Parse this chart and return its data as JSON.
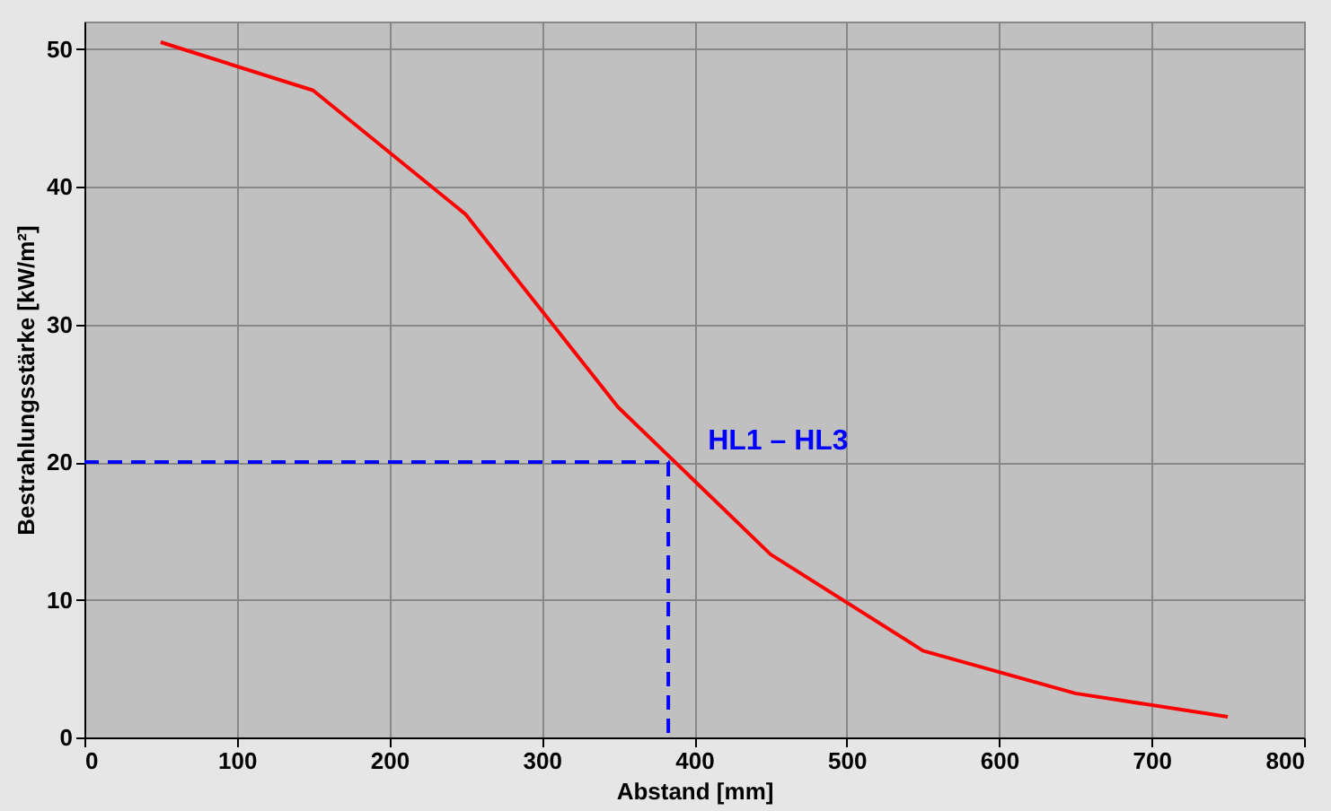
{
  "chart_data": {
    "type": "line",
    "xlabel": "Abstand [mm]",
    "ylabel": "Bestrahlungsstärke [kW/m²]",
    "xlim": [
      0,
      800
    ],
    "xticks": [
      0,
      100,
      200,
      300,
      400,
      500,
      600,
      700,
      800
    ],
    "ylim": [
      0,
      52
    ],
    "yticks": [
      0,
      10,
      20,
      30,
      40,
      50
    ],
    "grid": true,
    "series": [
      {
        "color": "#ff0000",
        "line_style": "solid",
        "x": [
          50,
          150,
          250,
          350,
          450,
          550,
          650,
          750
        ],
        "values": [
          50.5,
          47,
          38,
          24,
          13.3,
          6.3,
          3.2,
          1.5
        ]
      },
      {
        "color": "#0000ff",
        "line_style": "dashed",
        "x": [
          0,
          383,
          383
        ],
        "values": [
          20,
          20,
          0
        ]
      }
    ],
    "annotations": [
      {
        "text": "HL1 – HL3",
        "x": 383,
        "y": 20
      }
    ]
  }
}
